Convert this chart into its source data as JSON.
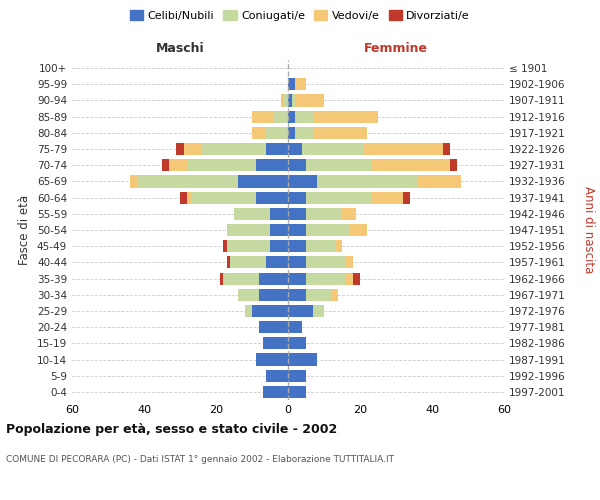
{
  "age_groups": [
    "100+",
    "95-99",
    "90-94",
    "85-89",
    "80-84",
    "75-79",
    "70-74",
    "65-69",
    "60-64",
    "55-59",
    "50-54",
    "45-49",
    "40-44",
    "35-39",
    "30-34",
    "25-29",
    "20-24",
    "15-19",
    "10-14",
    "5-9",
    "0-4"
  ],
  "birth_years": [
    "≤ 1901",
    "1902-1906",
    "1907-1911",
    "1912-1916",
    "1917-1921",
    "1922-1926",
    "1927-1931",
    "1932-1936",
    "1937-1941",
    "1942-1946",
    "1947-1951",
    "1952-1956",
    "1957-1961",
    "1962-1966",
    "1967-1971",
    "1972-1976",
    "1977-1981",
    "1982-1986",
    "1987-1991",
    "1992-1996",
    "1997-2001"
  ],
  "colors": {
    "celibi": "#4472c4",
    "coniugati": "#c5d9a0",
    "vedovi": "#f5c878",
    "divorziati": "#c0392b"
  },
  "males": {
    "celibi": [
      0,
      0,
      0,
      0,
      0,
      6,
      9,
      14,
      9,
      5,
      5,
      5,
      6,
      8,
      8,
      10,
      8,
      7,
      9,
      6,
      7
    ],
    "coniugati": [
      0,
      0,
      1,
      4,
      6,
      18,
      19,
      28,
      18,
      10,
      12,
      12,
      10,
      10,
      6,
      2,
      0,
      0,
      0,
      0,
      0
    ],
    "vedovi": [
      0,
      0,
      1,
      6,
      4,
      5,
      5,
      2,
      1,
      0,
      0,
      0,
      0,
      0,
      0,
      0,
      0,
      0,
      0,
      0,
      0
    ],
    "divorziati": [
      0,
      0,
      0,
      0,
      0,
      2,
      2,
      0,
      2,
      0,
      0,
      1,
      1,
      1,
      0,
      0,
      0,
      0,
      0,
      0,
      0
    ]
  },
  "females": {
    "celibi": [
      0,
      2,
      1,
      2,
      2,
      4,
      5,
      8,
      5,
      5,
      5,
      5,
      5,
      5,
      5,
      7,
      4,
      5,
      8,
      5,
      5
    ],
    "coniugati": [
      0,
      0,
      1,
      5,
      5,
      17,
      18,
      28,
      18,
      10,
      12,
      8,
      11,
      11,
      7,
      3,
      0,
      0,
      0,
      0,
      0
    ],
    "vedovi": [
      0,
      3,
      8,
      18,
      15,
      22,
      22,
      12,
      9,
      4,
      5,
      2,
      2,
      2,
      2,
      0,
      0,
      0,
      0,
      0,
      0
    ],
    "divorziati": [
      0,
      0,
      0,
      0,
      0,
      2,
      2,
      0,
      2,
      0,
      0,
      0,
      0,
      2,
      0,
      0,
      0,
      0,
      0,
      0,
      0
    ]
  },
  "xlim": 60,
  "title": "Popolazione per età, sesso e stato civile - 2002",
  "subtitle": "COMUNE DI PECORARA (PC) - Dati ISTAT 1° gennaio 2002 - Elaborazione TUTTITALIA.IT",
  "ylabel_left": "Fasce di età",
  "ylabel_right": "Anni di nascita",
  "xlabel_left": "Maschi",
  "xlabel_right": "Femmine",
  "legend_labels": [
    "Celibi/Nubili",
    "Coniugati/e",
    "Vedovi/e",
    "Divorziati/e"
  ],
  "background_color": "#ffffff",
  "grid_color": "#cccccc",
  "zero_line_color": "#aaaaaa"
}
